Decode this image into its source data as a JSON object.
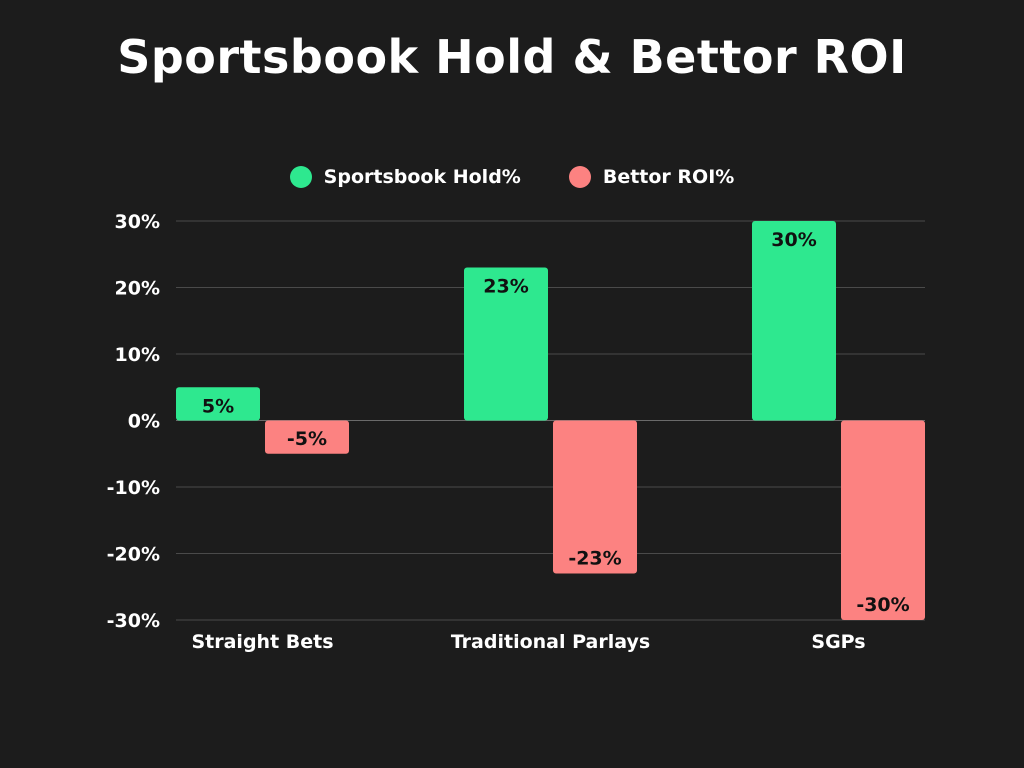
{
  "chart_data": {
    "type": "bar",
    "title": "Sportsbook Hold & Bettor ROI",
    "categories": [
      "Straight Bets",
      "Traditional Parlays",
      "SGPs"
    ],
    "series": [
      {
        "name": "Sportsbook Hold%",
        "color": "#2ee88f",
        "values": [
          5,
          23,
          30
        ],
        "labels": [
          "5%",
          "23%",
          "30%"
        ]
      },
      {
        "name": "Bettor ROI%",
        "color": "#fc8281",
        "values": [
          -5,
          -23,
          -30
        ],
        "labels": [
          "-5%",
          "-23%",
          "-30%"
        ]
      }
    ],
    "ylim": [
      -30,
      30
    ],
    "yticks": [
      30,
      20,
      10,
      0,
      -10,
      -20,
      -30
    ],
    "ytick_labels": [
      "30%",
      "20%",
      "10%",
      "0%",
      "-10%",
      "-20%",
      "-30%"
    ],
    "grid": true,
    "legend_position": "top-center",
    "xlabel": "",
    "ylabel": ""
  },
  "colors": {
    "background": "#1c1c1c",
    "grid": "#4a4a4a",
    "zero_line": "#6a6a6a"
  }
}
